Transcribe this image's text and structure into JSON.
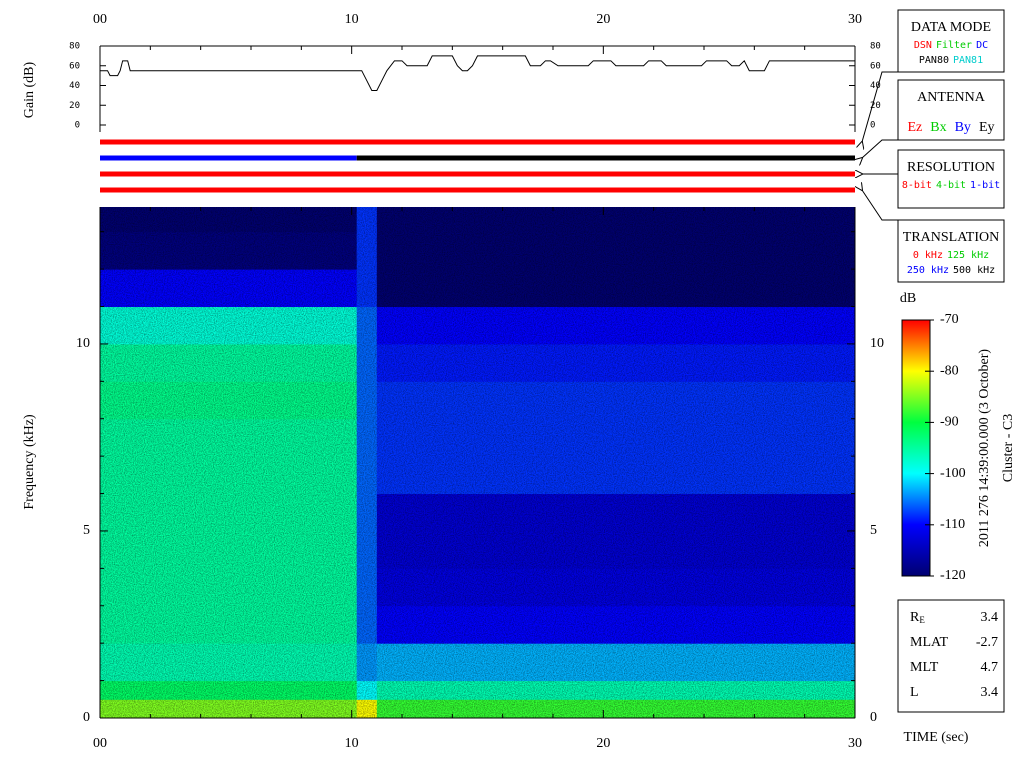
{
  "chart_data": [
    {
      "type": "line",
      "ylabel": "Gain (dB)",
      "xlim": [
        0,
        30
      ],
      "xticks": [
        {
          "value": 0,
          "label": "00"
        },
        10,
        20,
        30
      ],
      "xminorticks": [
        2,
        4,
        6,
        8,
        12,
        14,
        16,
        18,
        22,
        24,
        26,
        28
      ],
      "ylim": [
        0,
        80
      ],
      "yticks": [
        0,
        20,
        40,
        60,
        80
      ],
      "x": [
        0,
        0.3,
        0.4,
        0.7,
        0.8,
        0.9,
        1.1,
        1.2,
        10.4,
        10.6,
        10.8,
        11.0,
        11.2,
        11.4,
        11.7,
        12.0,
        12.2,
        12.5,
        13.0,
        13.2,
        14.0,
        14.2,
        14.4,
        14.6,
        14.8,
        15.0,
        16.9,
        17.1,
        17.5,
        17.7,
        17.9,
        18.2,
        18.4,
        19.4,
        19.6,
        20.3,
        20.5,
        21.6,
        21.8,
        22.3,
        22.5,
        23.9,
        24.1,
        24.9,
        25.1,
        25.4,
        25.6,
        25.8,
        26.1,
        26.4,
        26.6,
        30
      ],
      "series": [
        {
          "color": "#000000",
          "values": [
            55,
            55,
            50,
            50,
            55,
            65,
            65,
            55,
            55,
            45,
            35,
            35,
            45,
            55,
            65,
            65,
            60,
            60,
            60,
            70,
            70,
            60,
            55,
            55,
            60,
            70,
            70,
            60,
            60,
            65,
            65,
            60,
            60,
            60,
            65,
            65,
            60,
            60,
            65,
            65,
            60,
            60,
            65,
            65,
            60,
            60,
            65,
            55,
            55,
            55,
            65,
            65
          ]
        }
      ]
    },
    {
      "type": "heatmap",
      "xlabel": "TIME (sec)",
      "ylabel": "Frequency (kHz)",
      "xlim": [
        0,
        30
      ],
      "xticks": [
        {
          "value": 0,
          "label": "00"
        },
        10,
        20,
        30
      ],
      "xminorticks": [
        2,
        4,
        6,
        8,
        12,
        14,
        16,
        18,
        22,
        24,
        26,
        28
      ],
      "ylim": [
        0,
        13.66
      ],
      "yticks": [
        0,
        5,
        10
      ],
      "yminorticks": [
        1,
        2,
        3,
        4,
        6,
        7,
        8,
        9,
        11,
        12,
        13
      ],
      "x_edges": [
        0,
        2.5,
        5,
        7.5,
        10.2,
        11,
        13.5,
        16,
        18.5,
        21,
        23.5,
        26,
        28.5,
        30
      ],
      "y_edges": [
        0,
        0.5,
        1,
        2,
        3,
        4,
        5,
        6,
        7,
        8,
        9,
        10,
        11,
        12,
        13,
        13.66
      ],
      "z": [
        [
          -85,
          -85,
          -85,
          -85,
          -80,
          -88,
          -88,
          -88,
          -88,
          -88,
          -88,
          -88,
          -88
        ],
        [
          -92,
          -92,
          -92,
          -92,
          -100,
          -96,
          -96,
          -96,
          -96,
          -96,
          -96,
          -96,
          -96
        ],
        [
          -96,
          -96,
          -96,
          -96,
          -104,
          -103,
          -103,
          -103,
          -103,
          -103,
          -103,
          -103,
          -103
        ],
        [
          -95,
          -95,
          -95,
          -95,
          -106,
          -110,
          -110,
          -110,
          -110,
          -110,
          -110,
          -110,
          -110
        ],
        [
          -95,
          -95,
          -95,
          -95,
          -106,
          -112,
          -112,
          -112,
          -112,
          -112,
          -112,
          -112,
          -112
        ],
        [
          -95,
          -95,
          -95,
          -95,
          -106,
          -113,
          -113,
          -113,
          -113,
          -113,
          -113,
          -113,
          -113
        ],
        [
          -95,
          -95,
          -95,
          -95,
          -106,
          -113,
          -113,
          -113,
          -113,
          -113,
          -113,
          -113,
          -113
        ],
        [
          -95,
          -95,
          -95,
          -95,
          -106,
          -108,
          -108,
          -108,
          -108,
          -108,
          -108,
          -108,
          -108
        ],
        [
          -95,
          -95,
          -95,
          -95,
          -106,
          -108,
          -108,
          -108,
          -108,
          -108,
          -108,
          -108,
          -108
        ],
        [
          -94,
          -94,
          -94,
          -94,
          -106,
          -108,
          -108,
          -108,
          -108,
          -108,
          -108,
          -108,
          -108
        ],
        [
          -95,
          -95,
          -95,
          -95,
          -106,
          -109,
          -109,
          -109,
          -109,
          -109,
          -109,
          -109,
          -109
        ],
        [
          -98,
          -98,
          -98,
          -98,
          -106,
          -110,
          -110,
          -110,
          -110,
          -110,
          -110,
          -110,
          -110
        ],
        [
          -110,
          -110,
          -110,
          -110,
          -108,
          -120,
          -120,
          -120,
          -120,
          -120,
          -120,
          -120,
          -120
        ],
        [
          -119,
          -119,
          -119,
          -119,
          -108,
          -120,
          -120,
          -120,
          -120,
          -120,
          -120,
          -120,
          -120
        ],
        [
          -120,
          -120,
          -120,
          -120,
          -108,
          -120,
          -120,
          -120,
          -120,
          -120,
          -120,
          -120,
          -120
        ]
      ],
      "colorbar": {
        "label": "dB",
        "zlim": [
          -120,
          -70
        ],
        "ticks": [
          -70,
          -80,
          -90,
          -100,
          -110,
          -120
        ],
        "colors": [
          "#000070",
          "#0000ff",
          "#00ffff",
          "#00ff40",
          "#ffff00",
          "#ff0000"
        ]
      }
    }
  ],
  "status_lines": [
    {
      "segments": [
        {
          "start": 0,
          "end": 30,
          "color": "#ff0000"
        }
      ]
    },
    {
      "segments": [
        {
          "start": 0,
          "end": 10.2,
          "color": "#0000ff"
        },
        {
          "start": 10.2,
          "end": 30,
          "color": "#000000"
        }
      ]
    },
    {
      "segments": [
        {
          "start": 0,
          "end": 30,
          "color": "#ff0000"
        }
      ]
    },
    {
      "segments": [
        {
          "start": 0,
          "end": 30,
          "color": "#ff0000"
        }
      ]
    }
  ],
  "legends": [
    {
      "title": "DATA MODE",
      "rows": [
        [
          {
            "label": "DSN",
            "color": "#ff0000"
          },
          {
            "label": "Filter",
            "color": "#00cc00"
          },
          {
            "label": "DC",
            "color": "#0000ff"
          }
        ],
        [
          {
            "label": "PAN80",
            "color": "#000000"
          },
          {
            "label": "PAN81",
            "color": "#00cccc"
          }
        ]
      ]
    },
    {
      "title": "ANTENNA",
      "rows": [
        [
          {
            "label": "Ez",
            "color": "#ff0000"
          },
          {
            "label": "Bx",
            "color": "#00cc00"
          },
          {
            "label": "By",
            "color": "#0000ff"
          },
          {
            "label": "Ey",
            "color": "#000000"
          }
        ]
      ]
    },
    {
      "title": "RESOLUTION",
      "rows": [
        [
          {
            "label": "8-bit",
            "color": "#ff0000"
          },
          {
            "label": "4-bit",
            "color": "#00cc00"
          },
          {
            "label": "1-bit",
            "color": "#0000ff"
          }
        ]
      ]
    },
    {
      "title": "TRANSLATION",
      "rows": [
        [
          {
            "label": "0 kHz",
            "color": "#ff0000"
          },
          {
            "label": "125 kHz",
            "color": "#00cc00"
          }
        ],
        [
          {
            "label": "250 kHz",
            "color": "#0000ff"
          },
          {
            "label": "500 kHz",
            "color": "#000000"
          }
        ]
      ]
    }
  ],
  "annotations": [
    "2011 276 14:39:00.000 (3 October)",
    "Cluster - C3"
  ],
  "info": {
    "rows": [
      {
        "label": "R",
        "subscript": "E",
        "value": "3.4"
      },
      {
        "label": "MLAT",
        "value": "-2.7"
      },
      {
        "label": "MLT",
        "value": "4.7"
      },
      {
        "label": "L",
        "value": "3.4"
      }
    ]
  }
}
